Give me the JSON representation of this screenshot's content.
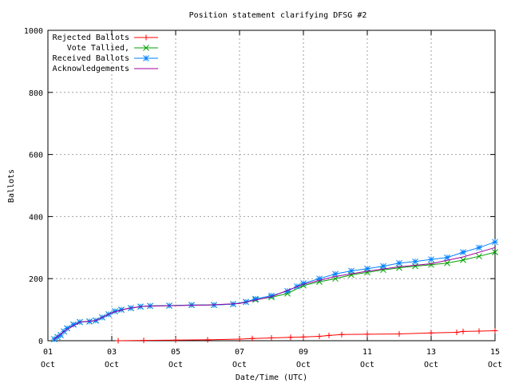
{
  "chart_data": {
    "type": "line",
    "title": "Position statement clarifying DFSG #2",
    "xlabel": "Date/Time (UTC)",
    "ylabel": "Ballots",
    "xlim": [
      1,
      15
    ],
    "xticks": [
      {
        "value": 1,
        "label": "01 Oct"
      },
      {
        "value": 3,
        "label": "03 Oct"
      },
      {
        "value": 5,
        "label": "05 Oct"
      },
      {
        "value": 7,
        "label": "07 Oct"
      },
      {
        "value": 9,
        "label": "09 Oct"
      },
      {
        "value": 11,
        "label": "11 Oct"
      },
      {
        "value": 13,
        "label": "13 Oct"
      },
      {
        "value": 15,
        "label": "15 Oct"
      }
    ],
    "ylim": [
      0,
      1000
    ],
    "yticks": [
      0,
      200,
      400,
      600,
      800,
      1000
    ],
    "grid": true,
    "legend": "top-left",
    "series": [
      {
        "name": "Rejected Ballots",
        "color": "#ff0000",
        "marker": "+",
        "x": [
          3.2,
          4.0,
          5.0,
          6.0,
          7.0,
          7.4,
          8.0,
          8.6,
          9.0,
          9.5,
          9.8,
          10.2,
          11.0,
          12.0,
          13.0,
          13.8,
          14.0,
          14.5,
          15.0
        ],
        "values": [
          0,
          1,
          2,
          3,
          5,
          7,
          9,
          11,
          12,
          14,
          17,
          20,
          21,
          22,
          25,
          27,
          30,
          31,
          32
        ]
      },
      {
        "name": "Vote Tallied,",
        "color": "#00a000",
        "marker": "x",
        "x": [
          1.2,
          1.3,
          1.4,
          1.5,
          1.6,
          1.8,
          2.0,
          2.3,
          2.5,
          2.7,
          2.9,
          3.1,
          3.3,
          3.6,
          3.9,
          4.2,
          4.8,
          5.5,
          6.2,
          6.8,
          7.2,
          7.5,
          8.0,
          8.5,
          9.0,
          9.5,
          10.0,
          10.5,
          11.0,
          11.5,
          12.0,
          12.5,
          13.0,
          13.5,
          14.0,
          14.5,
          15.0
        ],
        "values": [
          5,
          12,
          18,
          30,
          40,
          52,
          60,
          62,
          65,
          75,
          85,
          95,
          100,
          105,
          110,
          112,
          113,
          115,
          115,
          118,
          125,
          132,
          140,
          152,
          178,
          190,
          200,
          212,
          220,
          228,
          235,
          240,
          245,
          250,
          260,
          272,
          285
        ]
      },
      {
        "name": "Received Ballots",
        "color": "#0080ff",
        "marker": "*",
        "x": [
          1.2,
          1.3,
          1.4,
          1.5,
          1.6,
          1.8,
          2.0,
          2.3,
          2.5,
          2.7,
          2.9,
          3.1,
          3.3,
          3.6,
          3.9,
          4.2,
          4.8,
          5.5,
          6.2,
          6.8,
          7.2,
          7.5,
          8.0,
          8.5,
          8.8,
          9.0,
          9.5,
          10.0,
          10.5,
          11.0,
          11.5,
          12.0,
          12.5,
          13.0,
          13.5,
          14.0,
          14.5,
          15.0
        ],
        "values": [
          5,
          12,
          18,
          30,
          40,
          52,
          60,
          62,
          65,
          75,
          85,
          95,
          100,
          105,
          110,
          112,
          113,
          115,
          115,
          118,
          125,
          135,
          145,
          160,
          175,
          185,
          200,
          215,
          225,
          232,
          240,
          250,
          255,
          262,
          268,
          285,
          300,
          318
        ]
      },
      {
        "name": "Acknowledgements",
        "color": "#a000a0",
        "marker": "none",
        "x": [
          1.2,
          1.5,
          2.0,
          2.5,
          3.0,
          3.5,
          4.0,
          5.0,
          6.0,
          7.0,
          8.0,
          9.0,
          10.0,
          11.0,
          12.0,
          13.0,
          14.0,
          15.0
        ],
        "values": [
          5,
          30,
          60,
          65,
          90,
          104,
          111,
          113,
          115,
          120,
          142,
          182,
          207,
          224,
          238,
          248,
          270,
          300
        ]
      }
    ]
  }
}
